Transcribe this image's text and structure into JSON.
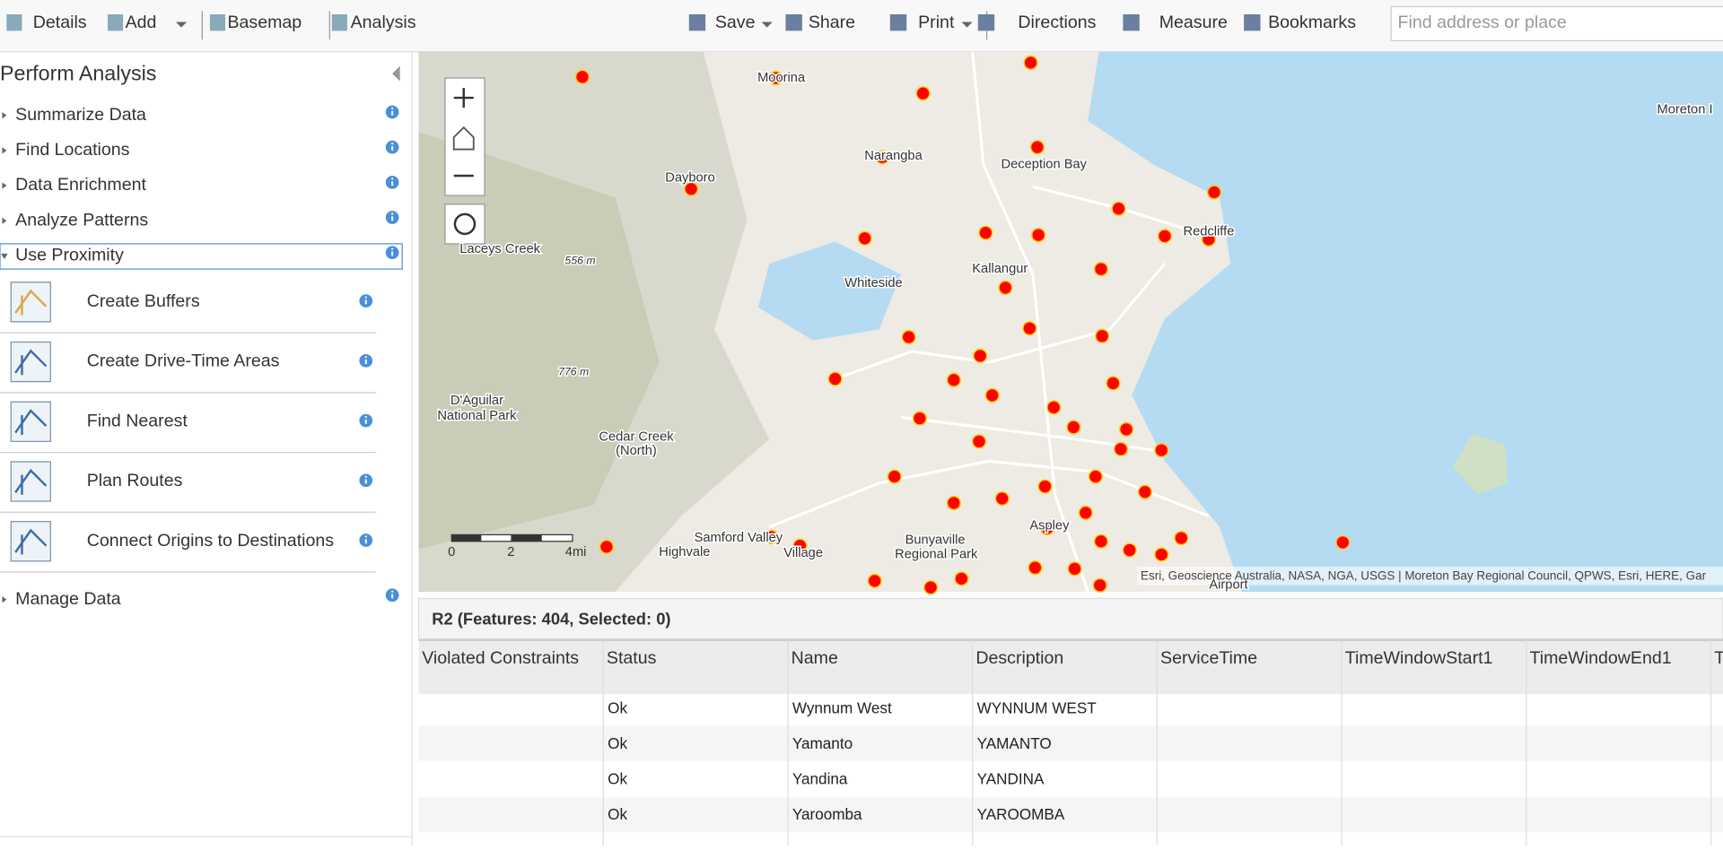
{
  "toolbar": {
    "left": [
      "Details",
      "Add",
      "Basemap",
      "Analysis"
    ],
    "right": [
      "Save",
      "Share",
      "Print",
      "Directions",
      "Measure",
      "Bookmarks"
    ],
    "search_placeholder": "Find address or place"
  },
  "panel": {
    "title": "Perform Analysis",
    "categories": [
      "Summarize Data",
      "Find Locations",
      "Data Enrichment",
      "Analyze Patterns",
      "Use Proximity"
    ],
    "tools": [
      "Create Buffers",
      "Create Drive-Time Areas",
      "Find Nearest",
      "Plan Routes",
      "Connect Origins to Destinations"
    ],
    "footer_category": "Manage Data"
  },
  "map": {
    "labels": [
      "Moorina",
      "Dayboro",
      "Narangba",
      "Deception Bay",
      "Redcliffe",
      "Laceys Creek",
      "556 m",
      "Whiteside",
      "Kallangur",
      "776 m",
      "D'Aguilar",
      "National Park",
      "Cedar Creek",
      "(North)",
      "Samford Valley",
      "Village",
      "Highvale",
      "Bunyaville",
      "Regional Park",
      "Aspley",
      "Moreton I",
      "Airport"
    ],
    "scale_labels": [
      "0",
      "2",
      "4mi"
    ],
    "attribution": "Esri, Geoscience Australia, NASA, NGA, USGS | Moreton Bay Regional Council, QPWS, Esri, HERE, Gar"
  },
  "table": {
    "title": "R2 (Features: 404, Selected: 0)",
    "columns": [
      "Violated Constraints",
      "Status",
      "Name",
      "Description",
      "ServiceTime",
      "TimeWindowStart1",
      "TimeWindowEnd1",
      "T"
    ],
    "rows": [
      [
        "Ok",
        "Wynnum West",
        "WYNNUM WEST"
      ],
      [
        "Ok",
        "Yamanto",
        "YAMANTO"
      ],
      [
        "Ok",
        "Yandina",
        "YANDINA"
      ],
      [
        "Ok",
        "Yaroomba",
        "YAROOMBA"
      ]
    ]
  }
}
